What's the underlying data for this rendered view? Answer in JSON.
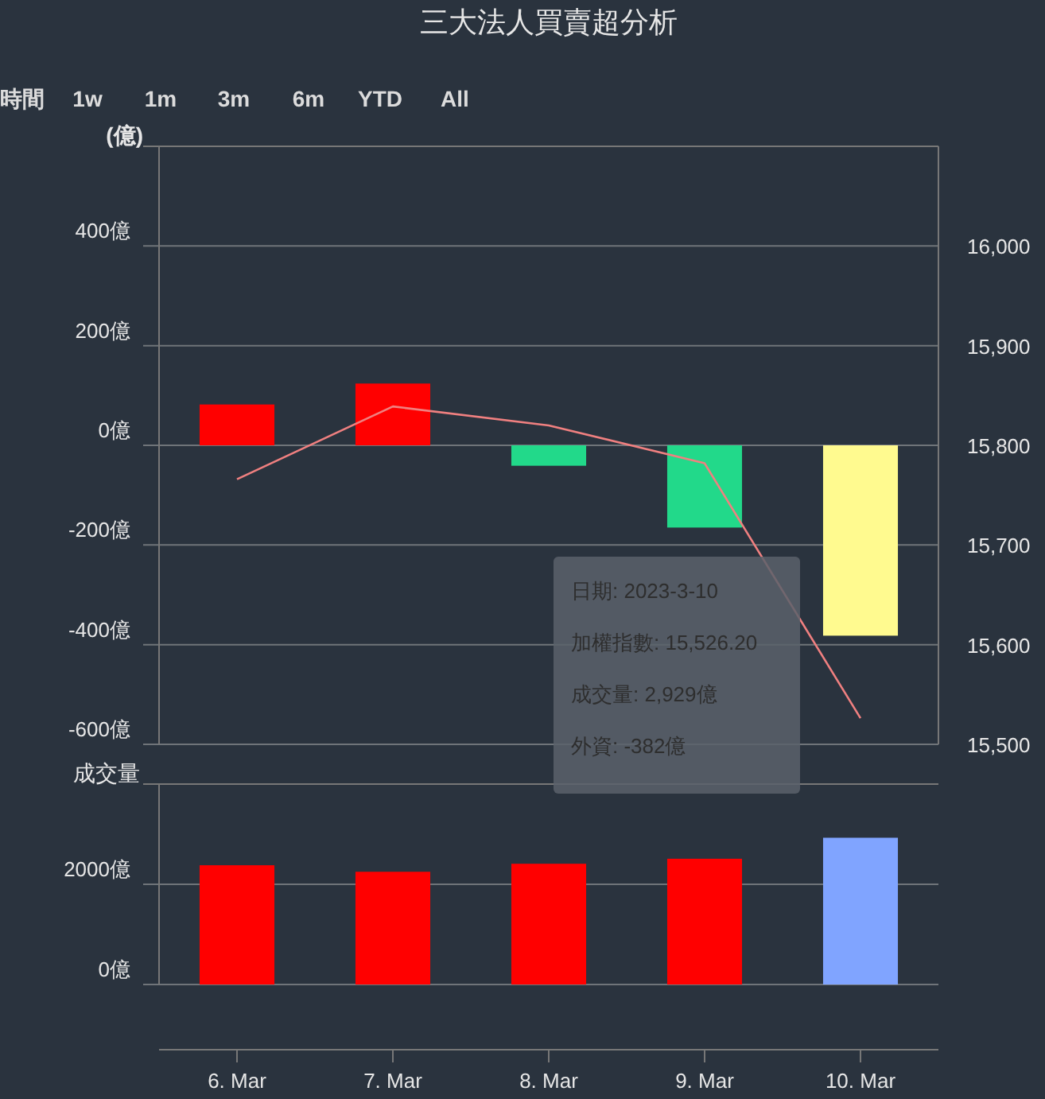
{
  "chart_data": [
    {
      "type": "bar",
      "title": "三大法人買賣超分析",
      "ylabel": "(億)",
      "categories": [
        null,
        null,
        null,
        null,
        null
      ],
      "series": [
        {
          "colors": [
            "#ff0000",
            "#ff0000",
            "#22d98a",
            "#22d98a",
            "#fffa8f"
          ],
          "values": [
            82,
            124,
            -41,
            -165,
            -382
          ]
        },
        {
          "type": "line",
          "axis": "y2",
          "color": "#f08080",
          "values": [
            15766,
            15839,
            15820,
            15782,
            15526.2
          ]
        }
      ],
      "ylim": [
        -600,
        600
      ],
      "yticks": [
        {
          "value": -600,
          "label": "-600億"
        },
        {
          "value": -400,
          "label": "-400億"
        },
        {
          "value": -200,
          "label": "-200億"
        },
        {
          "value": 0,
          "label": "0億"
        },
        {
          "value": 200,
          "label": "200億"
        },
        {
          "value": 400,
          "label": "400億"
        }
      ],
      "y2lim": [
        15500,
        16100
      ],
      "y2ticks": [
        {
          "value": 15500,
          "label": "15,500"
        },
        {
          "value": 15600,
          "label": "15,600"
        },
        {
          "value": 15700,
          "label": "15,700"
        },
        {
          "value": 15800,
          "label": "15,800"
        },
        {
          "value": 15900,
          "label": "15,900"
        },
        {
          "value": 16000,
          "label": "16,000"
        }
      ],
      "tick_labels": "y",
      "grid": "y",
      "marker": "none",
      "annotations": [
        "時間",
        "1w",
        "1m",
        "3m",
        "6m",
        "YTD",
        "All"
      ]
    },
    {
      "type": "bar",
      "ylabel": "成交量",
      "categories": [
        "6. Mar",
        "7. Mar",
        "8. Mar",
        "9. Mar",
        "10. Mar"
      ],
      "values": [
        2380,
        2250,
        2410,
        2510,
        2929
      ],
      "colors": [
        "#ff0000",
        "#ff0000",
        "#ff0000",
        "#ff0000",
        "#80a4ff"
      ],
      "ylim": [
        0,
        4000
      ],
      "yticks": [
        {
          "value": 0,
          "label": "0億"
        },
        {
          "value": 2000,
          "label": "2000億"
        }
      ],
      "grid": "y",
      "annotations": [
        "日期: 2023-3-10",
        "加權指數: 15,526.20",
        "成交量: 2,929億",
        "外資: -382億"
      ]
    }
  ]
}
